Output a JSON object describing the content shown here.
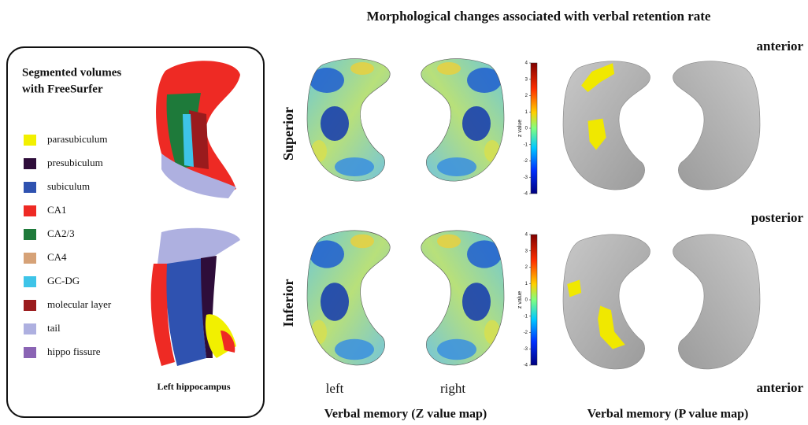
{
  "title": "Morphological changes associated with verbal retention rate",
  "legend_panel": {
    "title_lines": [
      "Segmented volumes",
      "with FreeSurfer"
    ],
    "items": [
      {
        "label": "parasubiculum",
        "color": "#f2f000"
      },
      {
        "label": "presubiculum",
        "color": "#2e0d3a"
      },
      {
        "label": "subiculum",
        "color": "#2f52b0"
      },
      {
        "label": "CA1",
        "color": "#ee2a24"
      },
      {
        "label": "CA2/3",
        "color": "#1e7a3a"
      },
      {
        "label": "CA4",
        "color": "#d6a277"
      },
      {
        "label": "GC-DG",
        "color": "#3ec4e8"
      },
      {
        "label": "molecular layer",
        "color": "#9a1b1d"
      },
      {
        "label": "tail",
        "color": "#aeb0e0"
      },
      {
        "label": "hippo fissure",
        "color": "#8a64b4"
      }
    ],
    "caption": "Left hippocampus"
  },
  "row_labels": [
    "Superior",
    "Inferior"
  ],
  "column_labels": [
    "left",
    "right"
  ],
  "orientation_labels": [
    "anterior",
    "posterior",
    "anterior"
  ],
  "colorbar": {
    "label": "z value",
    "ticks": [
      4,
      3,
      2,
      1,
      0,
      -1,
      -2,
      -3,
      -4
    ]
  },
  "panel_captions": [
    "Verbal memory (Z value map)",
    "Verbal memory (P value map)"
  ]
}
